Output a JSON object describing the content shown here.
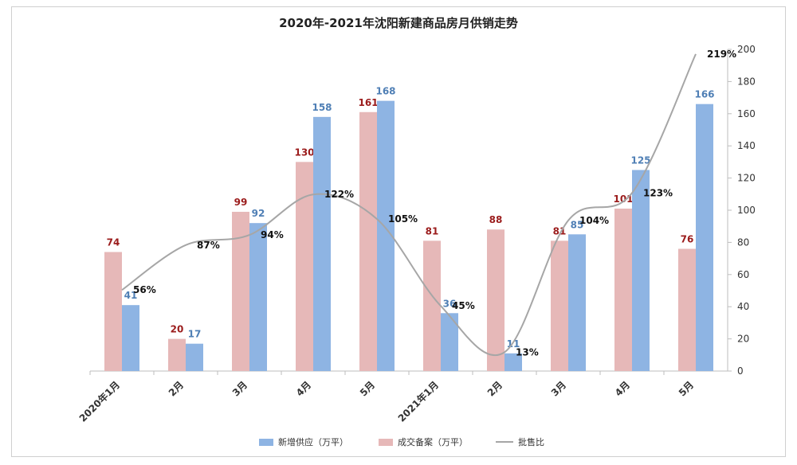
{
  "chart_data": {
    "type": "bar",
    "title": "2020年-2021年沈阳新建商品房月供销走势",
    "categories": [
      "2020年1月",
      "2月",
      "3月",
      "4月",
      "5月",
      "2021年1月",
      "2月",
      "3月",
      "4月",
      "5月"
    ],
    "series": [
      {
        "name": "成交备案（万平）",
        "type": "bar",
        "color": "#e6b8b8",
        "label_color": "#9b1c1c",
        "values": [
          74,
          20,
          99,
          130,
          161,
          81,
          88,
          81,
          101,
          76
        ]
      },
      {
        "name": "新增供应（万平）",
        "type": "bar",
        "color": "#8eb4e3",
        "label_color": "#4f7fb5",
        "values": [
          41,
          17,
          92,
          158,
          168,
          36,
          11,
          85,
          125,
          166
        ]
      },
      {
        "name": "批售比",
        "type": "line",
        "color": "#a6a6a6",
        "label_color": "#111111",
        "values": [
          56,
          87,
          94,
          122,
          105,
          45,
          13,
          104,
          123,
          219
        ],
        "labels": [
          "56%",
          "87%",
          "94%",
          "122%",
          "105%",
          "45%",
          "13%",
          "104%",
          "123%",
          "219%"
        ]
      }
    ],
    "y_axis": {
      "side": "right",
      "range": [
        0,
        200
      ],
      "ticks": [
        0,
        20,
        40,
        60,
        80,
        100,
        120,
        140,
        160,
        180,
        200
      ]
    },
    "grid": false,
    "legend_position": "bottom"
  }
}
